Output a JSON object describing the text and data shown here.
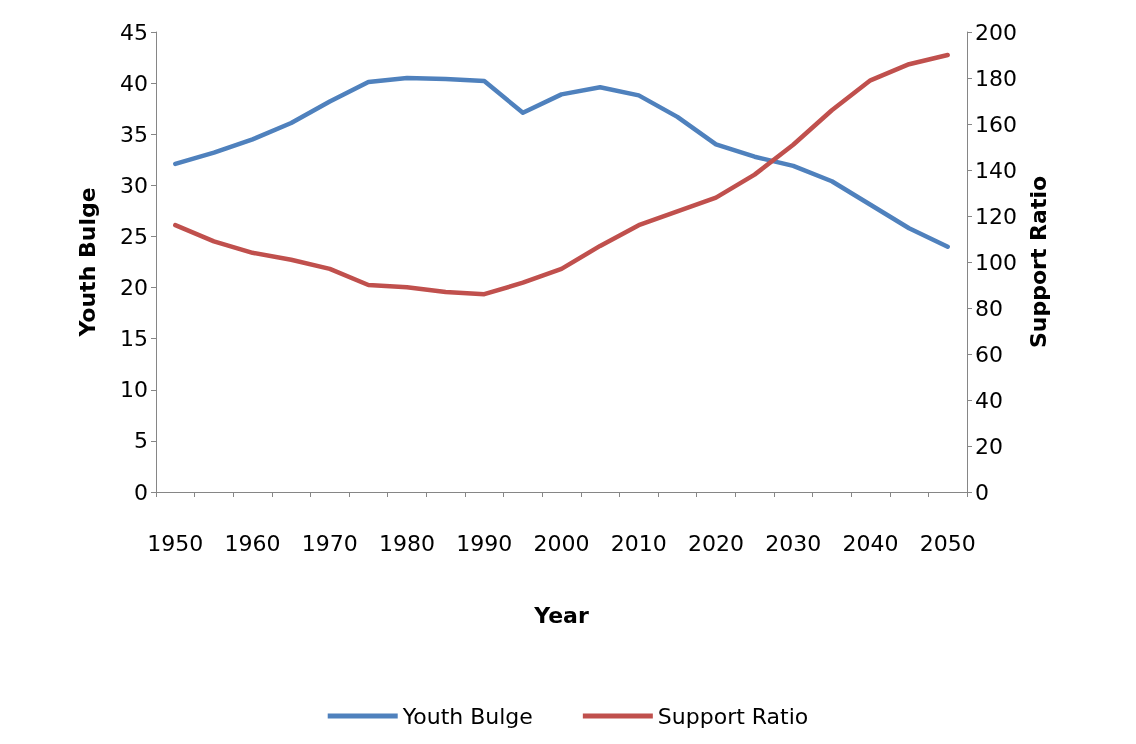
{
  "chart_data": {
    "type": "line",
    "xlabel": "Year",
    "ylabel": "Youth Bulge",
    "y2label": "Support Ratio",
    "categories": [
      "1950",
      null,
      "1960",
      null,
      "1970",
      null,
      "1980",
      null,
      "1990",
      null,
      "2000",
      null,
      "2010",
      null,
      "2020",
      null,
      "2030",
      null,
      "2040",
      null,
      "2050"
    ],
    "series": [
      {
        "name": "Youth Bulge",
        "color": "#4f81bd",
        "values": [
          32.1,
          33.2,
          34.5,
          36.1,
          38.2,
          40.1,
          40.5,
          40.4,
          40.2,
          37.1,
          38.9,
          39.6,
          38.8,
          36.7,
          34.0,
          32.8,
          31.9,
          30.4,
          28.1,
          25.8,
          24.0
        ]
      },
      {
        "name": "Support Ratio",
        "color": "#c0504d",
        "axis": "y2",
        "values": [
          116,
          109,
          104,
          101,
          97,
          90,
          89,
          87,
          86,
          91,
          97,
          107,
          116,
          122,
          128,
          138,
          151,
          166,
          179,
          186,
          190
        ]
      }
    ],
    "ylim": [
      0,
      45
    ],
    "yticks": [
      0,
      5,
      10,
      15,
      20,
      25,
      30,
      35,
      40,
      45
    ],
    "y2lim": [
      0,
      200
    ],
    "y2ticks": [
      0,
      20,
      40,
      60,
      80,
      100,
      120,
      140,
      160,
      180,
      200
    ],
    "grid": false,
    "legend": "bottom",
    "marker": "none",
    "line_style": "solid"
  }
}
